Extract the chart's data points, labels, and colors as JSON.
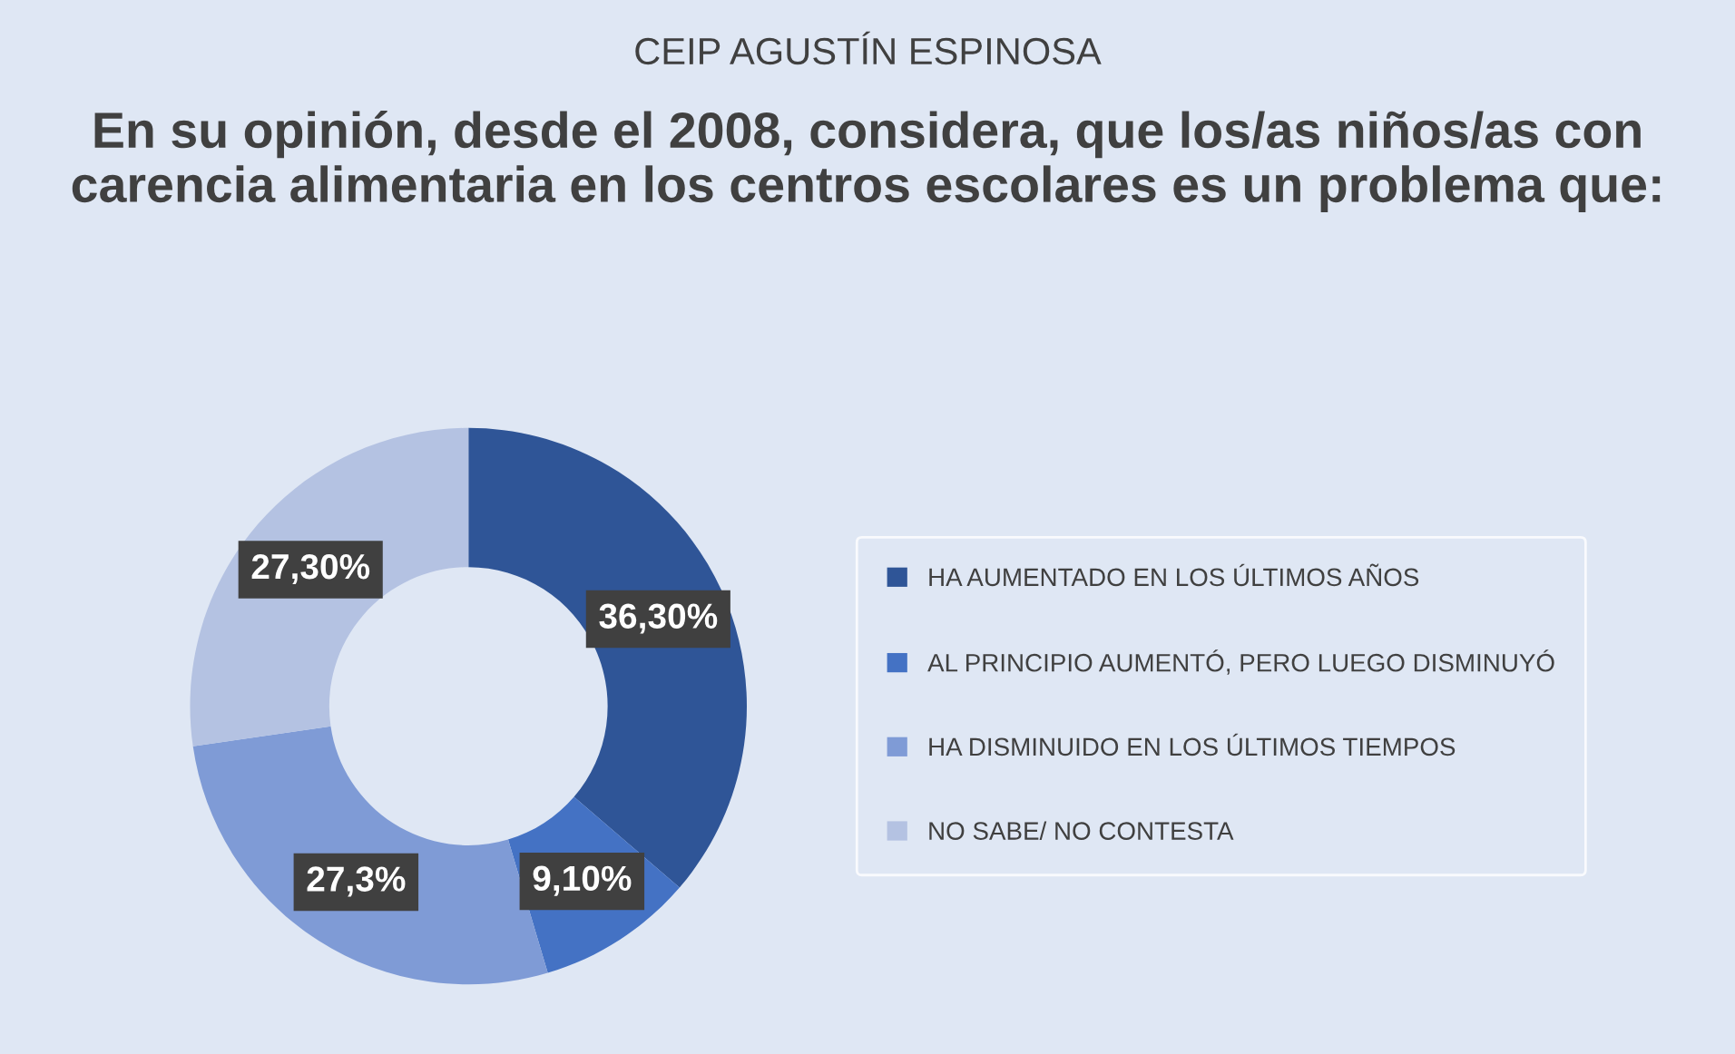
{
  "chart_data": {
    "type": "donut",
    "title": "CEIP AGUSTÍN ESPINOSA",
    "subtitle": "En su opinión, desde el 2008, considera, que los/as niños/as con carencia alimentaria en los centros escolares es un problema que:",
    "categories": [
      "HA AUMENTADO EN LOS ÚLTIMOS AÑOS",
      "AL PRINCIPIO AUMENTÓ, PERO LUEGO DISMINUYÓ",
      "HA DISMINUIDO EN LOS ÚLTIMOS TIEMPOS",
      "NO SABE/ NO CONTESTA"
    ],
    "values": [
      36.3,
      9.1,
      27.3,
      27.3
    ],
    "value_labels": [
      "36,30%",
      "9,10%",
      "27,3%",
      "27,30%"
    ],
    "colors": [
      "#2f5597",
      "#4472c4",
      "#7f9bd6",
      "#b4c2e2"
    ],
    "legend": "right"
  }
}
